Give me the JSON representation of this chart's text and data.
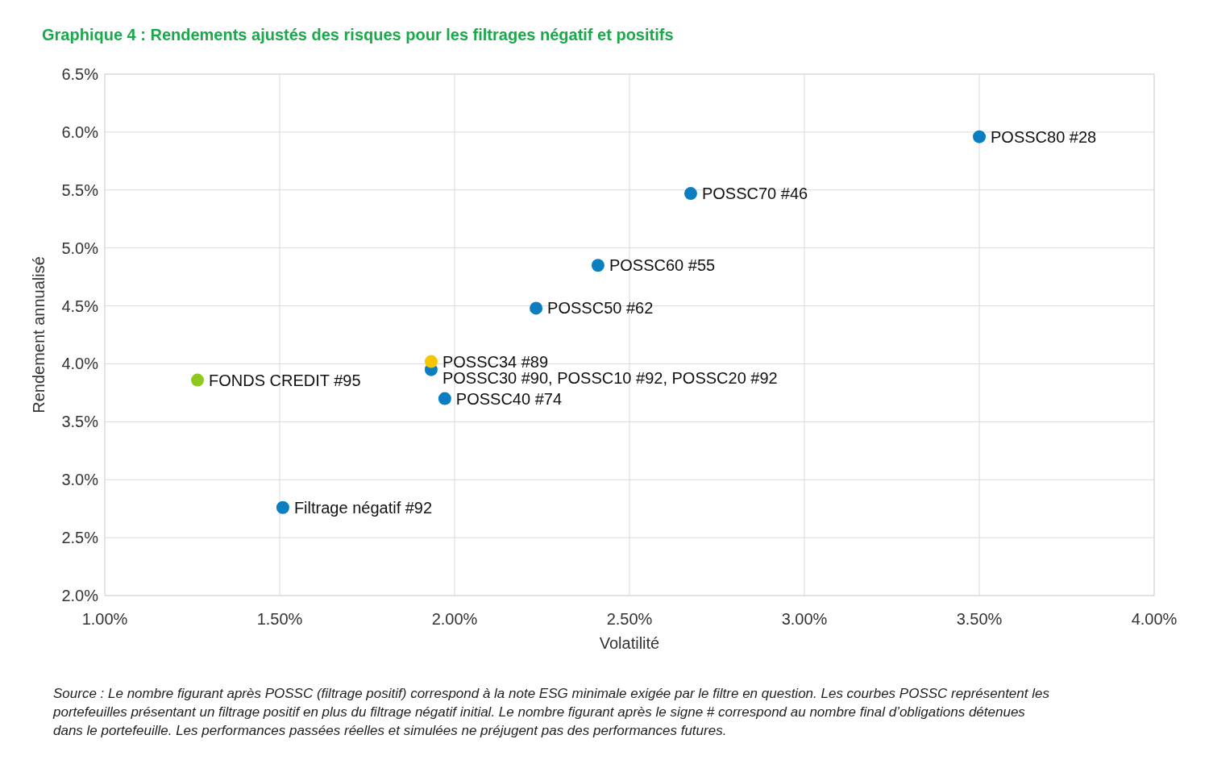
{
  "chart_data": {
    "type": "scatter",
    "title": "Graphique 4 : Rendements ajustés des risques pour les filtrages négatif et positifs",
    "xlabel": "Volatilité",
    "ylabel": "Rendement annualisé",
    "series": [
      {
        "color": "#0b7dc1",
        "x": [
          3.5,
          2.675,
          2.41,
          2.233,
          1.933,
          1.972,
          1.509
        ],
        "values": [
          5.96,
          5.47,
          4.85,
          4.48,
          3.95,
          3.7,
          2.76
        ]
      },
      {
        "color": "#f7c600",
        "x": [
          1.933
        ],
        "values": [
          4.02
        ]
      },
      {
        "color": "#8cc81e",
        "x": [
          1.265
        ],
        "values": [
          3.86
        ]
      }
    ],
    "xlim": [
      1,
      4
    ],
    "xticks": [
      {
        "value": 1,
        "label": "1.00%"
      },
      {
        "value": 1.5,
        "label": "1.50%"
      },
      {
        "value": 2,
        "label": "2.00%"
      },
      {
        "value": 2.5,
        "label": "2.50%"
      },
      {
        "value": 3,
        "label": "3.00%"
      },
      {
        "value": 3.5,
        "label": "3.50%"
      },
      {
        "value": 4,
        "label": "4.00%"
      }
    ],
    "ylim": [
      2,
      6.5
    ],
    "yticks": [
      {
        "value": 2,
        "label": "2.0%"
      },
      {
        "value": 2.5,
        "label": "2.5%"
      },
      {
        "value": 3,
        "label": "3.0%"
      },
      {
        "value": 3.5,
        "label": "3.5%"
      },
      {
        "value": 4,
        "label": "4.0%"
      },
      {
        "value": 4.5,
        "label": "4.5%"
      },
      {
        "value": 5,
        "label": "5.0%"
      },
      {
        "value": 5.5,
        "label": "5.5%"
      },
      {
        "value": 6,
        "label": "6.0%"
      },
      {
        "value": 6.5,
        "label": "6.5%"
      }
    ],
    "grid": true,
    "marker": "circle",
    "annotations": [
      {
        "text": "POSSC80 #28",
        "x": 3.5,
        "y": 5.96
      },
      {
        "text": "POSSC70 #46",
        "x": 2.675,
        "y": 5.47
      },
      {
        "text": "POSSC60 #55",
        "x": 2.41,
        "y": 4.85
      },
      {
        "text": "POSSC50 #62",
        "x": 2.233,
        "y": 4.48
      },
      {
        "text": "POSSC34 #89",
        "x": 1.933,
        "y": 4.02
      },
      {
        "text": "POSSC30 #90,  POSSC10 #92,  POSSC20 #92",
        "x": 1.933,
        "y": 3.95
      },
      {
        "text": "POSSC40 #74",
        "x": 1.972,
        "y": 3.7
      },
      {
        "text": "FONDS CREDIT #95",
        "x": 1.265,
        "y": 3.86
      },
      {
        "text": "Filtrage négatif #92",
        "x": 1.509,
        "y": 2.76
      },
      "Source : Le nombre figurant après POSSC (filtrage positif) correspond à la note ESG minimale exigée par le filtre en question. Les courbes POSSC représentent les portefeuilles présentant un filtrage positif en plus du filtrage négatif initial. Le nombre figurant après le signe # correspond au nombre final d’obligations détenues dans le portefeuille. Les performances passées réelles et simulées ne préjugent pas des performances futures."
    ]
  }
}
